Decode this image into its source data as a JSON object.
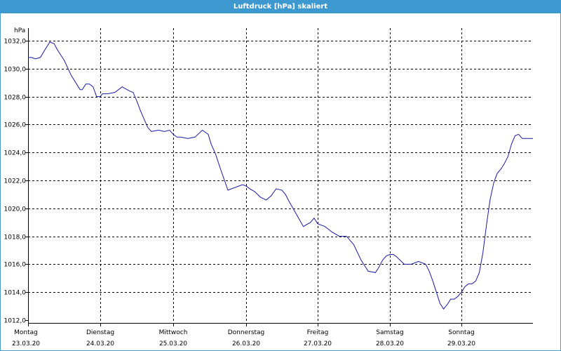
{
  "window": {
    "title": "Luftdruck [hPa] skaliert"
  },
  "colors": {
    "titlebar": "#3c98cf",
    "series": "#1a1aa8",
    "grid": "#000000"
  },
  "chart_data": {
    "type": "line",
    "title": "Luftdruck [hPa] skaliert",
    "ylabel": "hPa",
    "xlabel": "",
    "ylim": [
      1012.0,
      1032.0
    ],
    "xlim": [
      0,
      7
    ],
    "grid": true,
    "y_ticks": [
      "1012,0",
      "1014,0",
      "1016,0",
      "1018,0",
      "1020,0",
      "1022,0",
      "1024,0",
      "1026,0",
      "1028,0",
      "1030,0",
      "1032,0"
    ],
    "x_ticks": [
      {
        "day": "Montag",
        "date": "23.03.20"
      },
      {
        "day": "Dienstag",
        "date": "24.03.20"
      },
      {
        "day": "Mittwoch",
        "date": "25.03.20"
      },
      {
        "day": "Donnerstag",
        "date": "26.03.20"
      },
      {
        "day": "Freitag",
        "date": "27.03.20"
      },
      {
        "day": "Samstag",
        "date": "28.03.20"
      },
      {
        "day": "Sonntag",
        "date": "29.03.20"
      }
    ],
    "series": [
      {
        "x": [
          0,
          0.05,
          0.1,
          0.17,
          0.24,
          0.3,
          0.36,
          0.4,
          0.5,
          0.6,
          0.72,
          0.75,
          0.8,
          0.85,
          0.9,
          0.95,
          1.0,
          1.03,
          1.1,
          1.2,
          1.3,
          1.4,
          1.45,
          1.5,
          1.55,
          1.6,
          1.65,
          1.7,
          1.8,
          1.88,
          1.95,
          2.0,
          2.05,
          2.1,
          2.2,
          2.3,
          2.4,
          2.48,
          2.52,
          2.58,
          2.65,
          2.75,
          2.85,
          2.95,
          3.0,
          3.05,
          3.12,
          3.2,
          3.28,
          3.35,
          3.42,
          3.5,
          3.55,
          3.6,
          3.7,
          3.8,
          3.9,
          3.95,
          4.0,
          4.05,
          4.1,
          4.2,
          4.3,
          4.4,
          4.5,
          4.6,
          4.7,
          4.8,
          4.85,
          4.9,
          4.95,
          5.0,
          5.05,
          5.1,
          5.2,
          5.3,
          5.4,
          5.5,
          5.55,
          5.6,
          5.65,
          5.7,
          5.75,
          5.8,
          5.85,
          5.9,
          5.95,
          6.0,
          6.05,
          6.1,
          6.15,
          6.2,
          6.25,
          6.3,
          6.35,
          6.4,
          6.45,
          6.5,
          6.55,
          6.6,
          6.65,
          6.7,
          6.75,
          6.8,
          6.85,
          6.9,
          6.93,
          6.96,
          7.0
        ],
        "y": [
          1030.8,
          1030.8,
          1030.7,
          1030.8,
          1031.4,
          1031.9,
          1031.8,
          1031.4,
          1030.6,
          1029.5,
          1028.5,
          1028.5,
          1028.9,
          1028.9,
          1028.7,
          1028.0,
          1028.0,
          1028.2,
          1028.2,
          1028.3,
          1028.7,
          1028.4,
          1028.3,
          1027.7,
          1027.0,
          1026.4,
          1025.8,
          1025.5,
          1025.6,
          1025.5,
          1025.6,
          1025.3,
          1025.1,
          1025.1,
          1025.0,
          1025.1,
          1025.6,
          1025.3,
          1024.6,
          1023.9,
          1022.8,
          1021.3,
          1021.5,
          1021.7,
          1021.6,
          1021.4,
          1021.2,
          1020.8,
          1020.6,
          1020.9,
          1021.4,
          1021.3,
          1021.0,
          1020.5,
          1019.6,
          1018.7,
          1019.0,
          1019.3,
          1018.9,
          1018.8,
          1018.7,
          1018.3,
          1018.0,
          1018.0,
          1017.4,
          1016.3,
          1015.5,
          1015.4,
          1015.8,
          1016.3,
          1016.6,
          1016.7,
          1016.7,
          1016.5,
          1016.0,
          1016.0,
          1016.2,
          1016.0,
          1015.5,
          1014.8,
          1014.0,
          1013.2,
          1012.8,
          1013.1,
          1013.5,
          1013.5,
          1013.7,
          1014.0,
          1014.4,
          1014.6,
          1014.6,
          1014.8,
          1015.4,
          1016.8,
          1018.8,
          1020.6,
          1021.8,
          1022.5,
          1022.8,
          1023.2,
          1023.7,
          1024.6,
          1025.2,
          1025.3,
          1025.0,
          1025.0,
          1025.0,
          1025.0,
          1025.0
        ]
      }
    ]
  }
}
